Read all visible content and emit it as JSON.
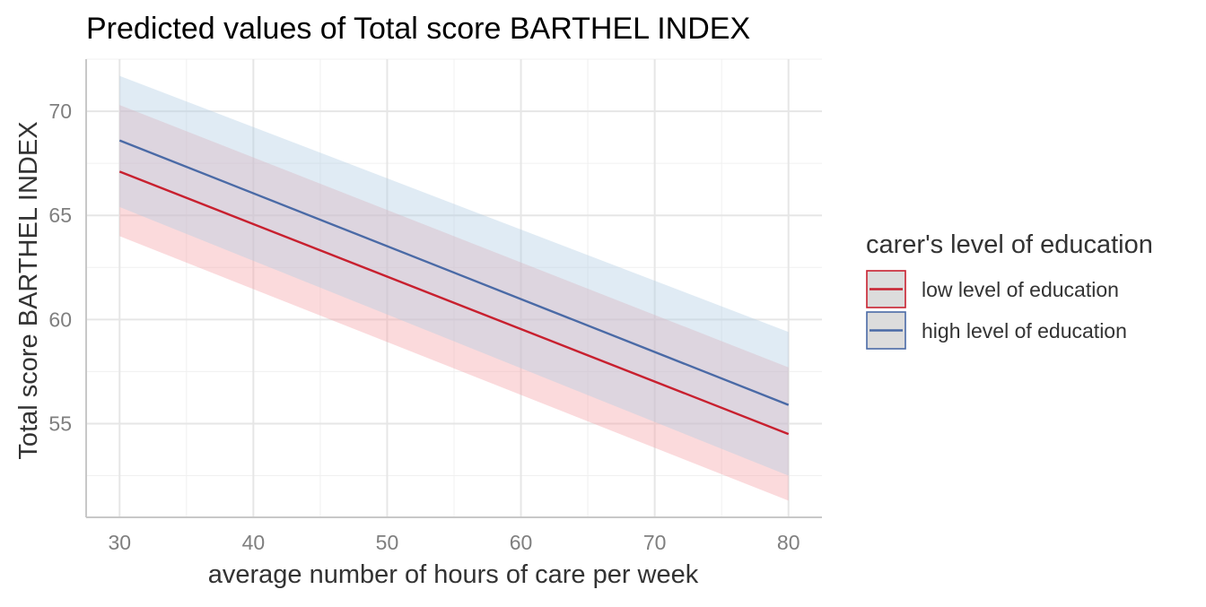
{
  "chart_data": {
    "type": "line",
    "title": "Predicted values of Total score BARTHEL INDEX",
    "xlabel": "average number of hours of care per week",
    "ylabel": "Total score BARTHEL INDEX",
    "xlim": [
      27.5,
      82.5
    ],
    "ylim": [
      50.5,
      72.5
    ],
    "x_ticks": [
      30,
      40,
      50,
      60,
      70,
      80
    ],
    "x_tick_labels": [
      "30",
      "40",
      "50",
      "60",
      "70",
      "80"
    ],
    "y_ticks": [
      55,
      60,
      65,
      70
    ],
    "y_tick_labels": [
      "55",
      "60",
      "65",
      "70"
    ],
    "grid": true,
    "legend": {
      "title": "carer's level of education",
      "position": "right"
    },
    "series": [
      {
        "name": "low level of education",
        "color": "#c8202f",
        "band_color": "#f4a3a8",
        "x": [
          30,
          80
        ],
        "values": [
          67.1,
          54.5
        ],
        "lower": [
          64.0,
          51.3
        ],
        "upper": [
          70.3,
          57.7
        ]
      },
      {
        "name": "high level of education",
        "color": "#4a6aa6",
        "band_color": "#b2cce4",
        "x": [
          30,
          80
        ],
        "values": [
          68.6,
          55.9
        ],
        "lower": [
          65.4,
          52.5
        ],
        "upper": [
          71.7,
          59.4
        ]
      }
    ]
  }
}
